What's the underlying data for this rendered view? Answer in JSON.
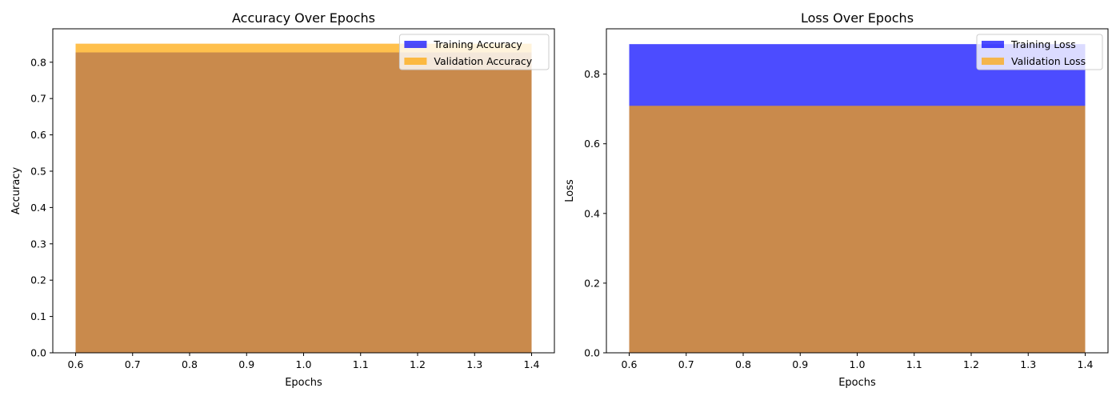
{
  "chart_data": [
    {
      "type": "bar",
      "title": "Accuracy Over Epochs",
      "xlabel": "Epochs",
      "ylabel": "Accuracy",
      "x": [
        1
      ],
      "bar_width": 0.8,
      "xlim": [
        0.56,
        1.44
      ],
      "ylim": [
        0,
        0.892
      ],
      "xticks": [
        0.6,
        0.7,
        0.8,
        0.9,
        1.0,
        1.1,
        1.2,
        1.3,
        1.4
      ],
      "xtick_labels": [
        "0.6",
        "0.7",
        "0.8",
        "0.9",
        "1.0",
        "1.1",
        "1.2",
        "1.3",
        "1.4"
      ],
      "yticks": [
        0,
        0.1,
        0.2,
        0.3,
        0.4,
        0.5,
        0.6,
        0.7,
        0.8
      ],
      "ytick_labels": [
        "0.0",
        "0.1",
        "0.2",
        "0.3",
        "0.4",
        "0.5",
        "0.6",
        "0.7",
        "0.8"
      ],
      "series": [
        {
          "name": "Training Accuracy",
          "values": [
            0.827
          ],
          "color": "#0000ff",
          "alpha": 0.7
        },
        {
          "name": "Validation Accuracy",
          "values": [
            0.851
          ],
          "color": "#ffa500",
          "alpha": 0.7
        }
      ],
      "grid": false,
      "legend_position": "top-right"
    },
    {
      "type": "bar",
      "title": "Loss Over Epochs",
      "xlabel": "Epochs",
      "ylabel": "Loss",
      "x": [
        1
      ],
      "bar_width": 0.8,
      "xlim": [
        0.56,
        1.44
      ],
      "ylim": [
        0,
        0.93
      ],
      "xticks": [
        0.6,
        0.7,
        0.8,
        0.9,
        1.0,
        1.1,
        1.2,
        1.3,
        1.4
      ],
      "xtick_labels": [
        "0.6",
        "0.7",
        "0.8",
        "0.9",
        "1.0",
        "1.1",
        "1.2",
        "1.3",
        "1.4"
      ],
      "yticks": [
        0,
        0.2,
        0.4,
        0.6,
        0.8
      ],
      "ytick_labels": [
        "0.0",
        "0.2",
        "0.4",
        "0.6",
        "0.8"
      ],
      "series": [
        {
          "name": "Training Loss",
          "values": [
            0.886
          ],
          "color": "#0000ff",
          "alpha": 0.7
        },
        {
          "name": "Validation Loss",
          "values": [
            0.709
          ],
          "color": "#ffa500",
          "alpha": 0.7
        }
      ],
      "grid": false,
      "legend_position": "top-right"
    }
  ]
}
